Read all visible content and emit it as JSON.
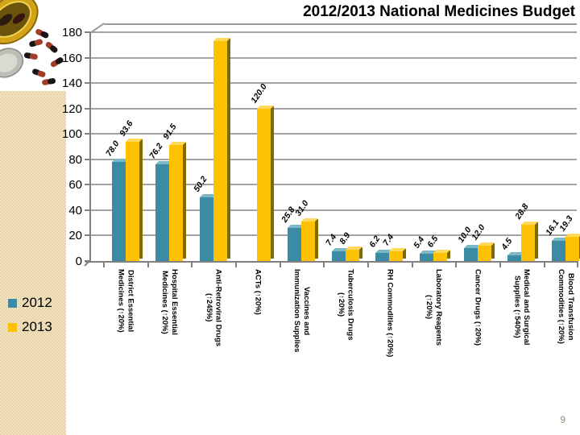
{
  "slide": {
    "title": "2012/2013 National Medicines Budget",
    "page_number": "9"
  },
  "legend": {
    "items": [
      {
        "label": "2012",
        "color": "#3A8BA3"
      },
      {
        "label": "2013",
        "color": "#FFC103"
      }
    ]
  },
  "icons": {
    "photo": "pill-bottle-with-capsules"
  },
  "chart_data": {
    "type": "bar",
    "title": "2012/2013 National Medicines Budget",
    "categories": [
      "District Essential\nMedicines (↑20%)",
      "Hospital Essential\nMedicines (↑20%)",
      "Anti-Retroviral Drugs\n(↑245%)",
      "ACTs (↑20%)",
      "Vaccines and\nImmunization Supplies",
      "Tuberculosis Drugs\n(↑20%)",
      "RH Commodities (↑20%)",
      "Laboratory Reagents\n(↑20%)",
      "Cancer Drugs (↑20%)",
      "Medical and Surgical\nSupplies (↑540%)",
      "Blood Transfusion\nCommodities (↑20%)"
    ],
    "series": [
      {
        "name": "2012",
        "color": "#3A8BA3",
        "side_color": "#20606F",
        "top_color": "#7AB8C7",
        "values": [
          78.0,
          76.2,
          50.2,
          null,
          25.8,
          7.4,
          6.2,
          5.4,
          10.0,
          4.5,
          16.1
        ],
        "labels": [
          "78.0",
          "76.2",
          "50.2",
          null,
          "25.8",
          "7.4",
          "6.2",
          "5.4",
          "10.0",
          "4.5",
          "16.1"
        ]
      },
      {
        "name": "2013",
        "color": "#FFC103",
        "side_color": "#7E6A00",
        "top_color": "#FFD95C",
        "values": [
          93.6,
          91.5,
          173.2,
          120.0,
          31.0,
          8.9,
          7.4,
          6.5,
          12.0,
          28.8,
          19.3
        ],
        "labels": [
          "93.6",
          "91.5",
          null,
          "120.0",
          "31.0",
          "8.9",
          "7.4",
          "6.5",
          "12.0",
          "28.8",
          "19.3"
        ]
      }
    ],
    "ylim": [
      0,
      180
    ],
    "ytick_step": 20,
    "yticks": [
      0,
      20,
      40,
      60,
      80,
      100,
      120,
      140,
      160,
      180
    ],
    "grid": true,
    "legend_position": "bottom-left"
  }
}
